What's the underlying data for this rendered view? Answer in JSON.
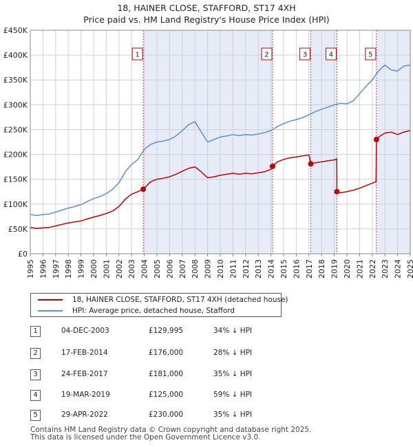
{
  "title": "18, HAINER CLOSE, STAFFORD, ST17 4XH",
  "subtitle": "Price paid vs. HM Land Registry's House Price Index (HPI)",
  "colors": {
    "property": "#c00000",
    "hpi": "#5b8fd3",
    "shade": "#e6ebf8",
    "marker_line": "#d44444"
  },
  "chart_data": {
    "type": "line",
    "title": "18, HAINER CLOSE, STAFFORD, ST17 4XH",
    "subtitle": "Price paid vs. HM Land Registry's House Price Index (HPI)",
    "xlim": [
      1995,
      2025
    ],
    "ylim": [
      0,
      450000
    ],
    "x_ticks": [
      "1995",
      "1996",
      "1997",
      "1998",
      "1999",
      "2000",
      "2001",
      "2002",
      "2003",
      "2004",
      "2005",
      "2006",
      "2007",
      "2008",
      "2009",
      "2010",
      "2011",
      "2012",
      "2013",
      "2014",
      "2015",
      "2016",
      "2017",
      "2018",
      "2019",
      "2020",
      "2021",
      "2022",
      "2023",
      "2024",
      "2025"
    ],
    "y_ticks": [
      {
        "value": 0,
        "label": "£0"
      },
      {
        "value": 50000,
        "label": "£50K"
      },
      {
        "value": 100000,
        "label": "£100K"
      },
      {
        "value": 150000,
        "label": "£150K"
      },
      {
        "value": 200000,
        "label": "£200K"
      },
      {
        "value": 250000,
        "label": "£250K"
      },
      {
        "value": 300000,
        "label": "£300K"
      },
      {
        "value": 350000,
        "label": "£350K"
      },
      {
        "value": 400000,
        "label": "£400K"
      },
      {
        "value": 450000,
        "label": "£450K"
      }
    ],
    "grid": true,
    "legend_position": "below chart",
    "shaded_ranges": [
      [
        2003.92,
        2014.13
      ],
      [
        2017.15,
        2019.21
      ],
      [
        2022.33,
        2025
      ]
    ],
    "series": [
      {
        "name": "18, HAINER CLOSE, STAFFORD, ST17 4XH (detached house)",
        "x": [
          1995.0,
          1995.5,
          1996.0,
          1996.5,
          1997.0,
          1997.5,
          1998.0,
          1998.5,
          1999.0,
          1999.5,
          2000.0,
          2000.5,
          2001.0,
          2001.5,
          2002.0,
          2002.5,
          2003.0,
          2003.5,
          2003.92,
          2004.5,
          2005.0,
          2005.5,
          2006.0,
          2006.5,
          2007.0,
          2007.5,
          2008.0,
          2008.5,
          2009.0,
          2009.5,
          2010.0,
          2010.5,
          2011.0,
          2011.5,
          2012.0,
          2012.5,
          2013.0,
          2013.5,
          2014.0,
          2014.13,
          2014.5,
          2015.0,
          2015.5,
          2016.0,
          2016.5,
          2017.0,
          2017.15,
          2017.5,
          2018.0,
          2018.5,
          2019.0,
          2019.2,
          2019.21,
          2019.5,
          2020.0,
          2020.5,
          2021.0,
          2021.5,
          2022.0,
          2022.3,
          2022.33,
          2022.5,
          2023.0,
          2023.5,
          2024.0,
          2024.5,
          2025.0
        ],
        "y": [
          53000,
          51000,
          52000,
          53000,
          56000,
          59000,
          62000,
          64000,
          66000,
          70000,
          74000,
          77000,
          81000,
          86000,
          95000,
          110000,
          120000,
          125000,
          129995,
          145000,
          150000,
          152000,
          155000,
          160000,
          166000,
          172000,
          175000,
          165000,
          153000,
          155000,
          158000,
          160000,
          162000,
          160000,
          162000,
          161000,
          163000,
          165000,
          170000,
          176000,
          185000,
          190000,
          193000,
          195000,
          197000,
          199000,
          181000,
          183000,
          185000,
          187000,
          189000,
          191000,
          125000,
          123000,
          125000,
          128000,
          132000,
          137000,
          142000,
          145000,
          230000,
          235000,
          243000,
          245000,
          240000,
          245000,
          248000
        ]
      },
      {
        "name": "HPI: Average price, detached house, Stafford",
        "x": [
          1995.0,
          1995.5,
          1996.0,
          1996.5,
          1997.0,
          1997.5,
          1998.0,
          1998.5,
          1999.0,
          1999.5,
          2000.0,
          2000.5,
          2001.0,
          2001.5,
          2002.0,
          2002.5,
          2003.0,
          2003.5,
          2004.0,
          2004.5,
          2005.0,
          2005.5,
          2006.0,
          2006.5,
          2007.0,
          2007.5,
          2008.0,
          2008.5,
          2009.0,
          2009.5,
          2010.0,
          2010.5,
          2011.0,
          2011.5,
          2012.0,
          2012.5,
          2013.0,
          2013.5,
          2014.0,
          2014.5,
          2015.0,
          2015.5,
          2016.0,
          2016.5,
          2017.0,
          2017.5,
          2018.0,
          2018.5,
          2019.0,
          2019.5,
          2020.0,
          2020.5,
          2021.0,
          2021.5,
          2022.0,
          2022.5,
          2023.0,
          2023.5,
          2024.0,
          2024.5,
          2025.0
        ],
        "y": [
          79000,
          77000,
          79000,
          80000,
          84000,
          88000,
          92000,
          95000,
          99000,
          105000,
          111000,
          115000,
          121000,
          130000,
          143000,
          165000,
          180000,
          190000,
          210000,
          220000,
          225000,
          227000,
          230000,
          237000,
          248000,
          260000,
          266000,
          245000,
          225000,
          230000,
          235000,
          237000,
          240000,
          238000,
          240000,
          239000,
          241000,
          244000,
          248000,
          256000,
          262000,
          267000,
          270000,
          274000,
          280000,
          286000,
          291000,
          295000,
          300000,
          303000,
          302000,
          308000,
          322000,
          337000,
          350000,
          368000,
          380000,
          370000,
          368000,
          378000,
          380000
        ]
      }
    ],
    "sales": [
      {
        "id": "1",
        "x": 2003.92,
        "y": 129995
      },
      {
        "id": "2",
        "x": 2014.13,
        "y": 176000
      },
      {
        "id": "3",
        "x": 2017.15,
        "y": 181000
      },
      {
        "id": "4",
        "x": 2019.21,
        "y": 125000
      },
      {
        "id": "5",
        "x": 2022.33,
        "y": 230000
      }
    ]
  },
  "legend": {
    "property_label": "18, HAINER CLOSE, STAFFORD, ST17 4XH (detached house)",
    "hpi_label": "HPI: Average price, detached house, Stafford"
  },
  "sales_table": [
    {
      "num": "1",
      "date": "04-DEC-2003",
      "price": "£129,995",
      "hpi": "34% ↓ HPI"
    },
    {
      "num": "2",
      "date": "17-FEB-2014",
      "price": "£176,000",
      "hpi": "28% ↓ HPI"
    },
    {
      "num": "3",
      "date": "24-FEB-2017",
      "price": "£181,000",
      "hpi": "35% ↓ HPI"
    },
    {
      "num": "4",
      "date": "19-MAR-2019",
      "price": "£125,000",
      "hpi": "59% ↓ HPI"
    },
    {
      "num": "5",
      "date": "29-APR-2022",
      "price": "£230,000",
      "hpi": "35% ↓ HPI"
    }
  ],
  "footer": {
    "line1": "Contains HM Land Registry data © Crown copyright and database right 2025.",
    "line2": "This data is licensed under the Open Government Licence v3.0."
  }
}
